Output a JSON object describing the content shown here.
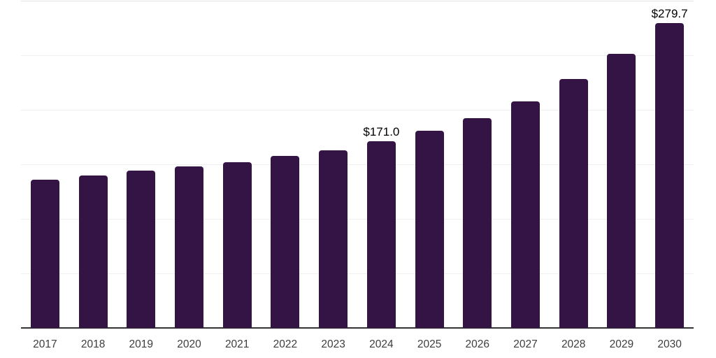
{
  "colors": {
    "background": "#ffffff",
    "bar": "#341345",
    "gridline": "#efefef",
    "axis_line": "#333333",
    "x_label": "#3d3d3d",
    "data_label": "#000000"
  },
  "chart_data": {
    "type": "bar",
    "categories": [
      "2017",
      "2018",
      "2019",
      "2020",
      "2021",
      "2022",
      "2023",
      "2024",
      "2025",
      "2026",
      "2027",
      "2028",
      "2029",
      "2030"
    ],
    "values": [
      136.0,
      140.0,
      144.2,
      148.0,
      152.0,
      157.5,
      162.6,
      171.0,
      180.6,
      192.3,
      207.7,
      228.0,
      251.5,
      279.7
    ],
    "data_labels": {
      "2024": "$171.0",
      "2030": "$279.7"
    },
    "title": "",
    "xlabel": "",
    "ylabel": "",
    "ylim": [
      0,
      300
    ],
    "grid_step": 50,
    "grid": true,
    "y_tick_labels_visible": false,
    "legend_position": "none",
    "bar_color": "#341345"
  }
}
